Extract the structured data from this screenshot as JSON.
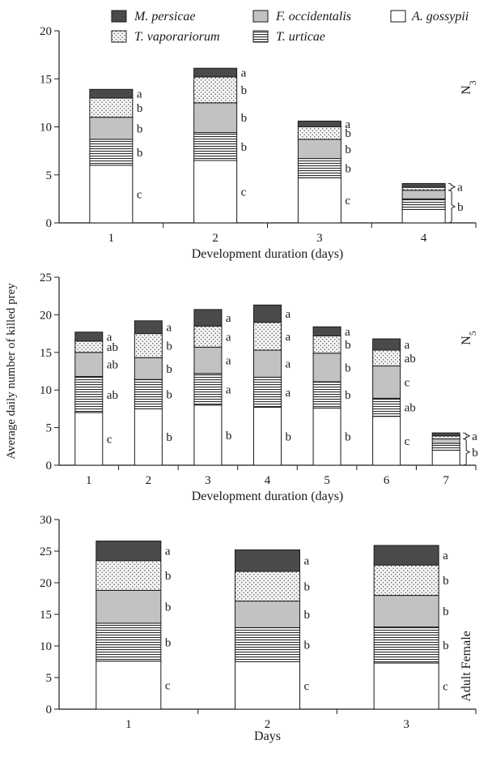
{
  "shared_ylabel": "Average daily number of killed prey",
  "legend": [
    {
      "key": "mp",
      "label": "M. persicae",
      "pattern": "solid-dark"
    },
    {
      "key": "fo",
      "label": "F. occidentalis",
      "pattern": "solid-gray"
    },
    {
      "key": "ag",
      "label": "A. gossypii",
      "pattern": "white"
    },
    {
      "key": "tv",
      "label": "T. vaporariorum",
      "pattern": "dots"
    },
    {
      "key": "tu",
      "label": "T. urticae",
      "pattern": "horizontal-lines"
    }
  ],
  "colors": {
    "mp": "#4a4a4a",
    "fo": "#c2c2c2",
    "ag": "#ffffff",
    "tv": "#f4f4f4",
    "tu": "#ffffff",
    "line": "#1a1a1a"
  },
  "chart_data": [
    {
      "type": "bar",
      "stacked": true,
      "panel_label": "N3",
      "xlabel": "Development duration (days)",
      "ylabel": "",
      "ylim": [
        0,
        20
      ],
      "yticks": [
        0,
        5,
        10,
        15,
        20
      ],
      "categories": [
        "1",
        "2",
        "3",
        "4"
      ],
      "series": [
        {
          "key": "ag",
          "values": [
            6.0,
            6.5,
            4.7,
            1.4
          ],
          "letters": [
            "c",
            "c",
            "c",
            ""
          ]
        },
        {
          "key": "tu",
          "values": [
            2.7,
            2.9,
            2.0,
            1.1
          ],
          "letters": [
            "b",
            "b",
            "b",
            ""
          ]
        },
        {
          "key": "fo",
          "values": [
            2.3,
            3.1,
            2.0,
            0.9
          ],
          "letters": [
            "b",
            "b",
            "b",
            ""
          ]
        },
        {
          "key": "tv",
          "values": [
            2.0,
            2.7,
            1.3,
            0.3
          ],
          "letters": [
            "b",
            "b",
            "b",
            ""
          ]
        },
        {
          "key": "mp",
          "values": [
            0.9,
            0.9,
            0.6,
            0.4
          ],
          "letters": [
            "a",
            "a",
            "a",
            ""
          ]
        }
      ],
      "bracket_labels": [
        {
          "category": "4",
          "text": "a",
          "series_from": "tv",
          "series_to": "mp"
        },
        {
          "category": "4",
          "text": "b",
          "series_from": "ag",
          "series_to": "fo"
        }
      ]
    },
    {
      "type": "bar",
      "stacked": true,
      "panel_label": "N5",
      "xlabel": "Development duration (days)",
      "ylabel": "",
      "ylim": [
        0,
        25
      ],
      "yticks": [
        0,
        5,
        10,
        15,
        20,
        25
      ],
      "categories": [
        "1",
        "2",
        "3",
        "4",
        "5",
        "6",
        "7"
      ],
      "series": [
        {
          "key": "ag",
          "values": [
            7.0,
            7.5,
            8.0,
            7.7,
            7.6,
            6.5,
            2.0
          ],
          "letters": [
            "c",
            "b",
            "b",
            "b",
            "b",
            "c",
            ""
          ]
        },
        {
          "key": "tu",
          "values": [
            4.8,
            3.9,
            4.2,
            4.0,
            3.5,
            2.4,
            0.9
          ],
          "letters": [
            "ab",
            "b",
            "a",
            "a",
            "b",
            "ab",
            ""
          ]
        },
        {
          "key": "fo",
          "values": [
            3.2,
            2.9,
            3.5,
            3.6,
            3.8,
            4.3,
            0.6
          ],
          "letters": [
            "ab",
            "b",
            "a",
            "a",
            "b",
            "c",
            ""
          ]
        },
        {
          "key": "tv",
          "values": [
            1.5,
            3.2,
            2.8,
            3.7,
            2.3,
            2.1,
            0.4
          ],
          "letters": [
            "ab",
            "b",
            "a",
            "a",
            "b",
            "ab",
            ""
          ]
        },
        {
          "key": "mp",
          "values": [
            1.2,
            1.7,
            2.2,
            2.3,
            1.2,
            1.5,
            0.4
          ],
          "letters": [
            "a",
            "a",
            "a",
            "a",
            "a",
            "a",
            ""
          ]
        }
      ],
      "bracket_labels": [
        {
          "category": "7",
          "text": "a",
          "series_from": "tv",
          "series_to": "mp"
        },
        {
          "category": "7",
          "text": "b",
          "series_from": "ag",
          "series_to": "fo"
        }
      ]
    },
    {
      "type": "bar",
      "stacked": true,
      "panel_label": "Adult Female",
      "xlabel": "Days",
      "ylabel": "",
      "ylim": [
        0,
        30
      ],
      "yticks": [
        0,
        5,
        10,
        15,
        20,
        25,
        30
      ],
      "categories": [
        "1",
        "2",
        "3"
      ],
      "series": [
        {
          "key": "ag",
          "values": [
            7.6,
            7.5,
            7.3
          ],
          "letters": [
            "c",
            "c",
            "c"
          ]
        },
        {
          "key": "tu",
          "values": [
            6.0,
            5.4,
            5.7
          ],
          "letters": [
            "b",
            "b",
            "b"
          ]
        },
        {
          "key": "fo",
          "values": [
            5.2,
            4.2,
            5.0
          ],
          "letters": [
            "b",
            "b",
            "b"
          ]
        },
        {
          "key": "tv",
          "values": [
            4.7,
            4.7,
            4.8
          ],
          "letters": [
            "b",
            "b",
            "b"
          ]
        },
        {
          "key": "mp",
          "values": [
            3.1,
            3.4,
            3.1
          ],
          "letters": [
            "a",
            "a",
            "a"
          ]
        }
      ],
      "bracket_labels": []
    }
  ]
}
